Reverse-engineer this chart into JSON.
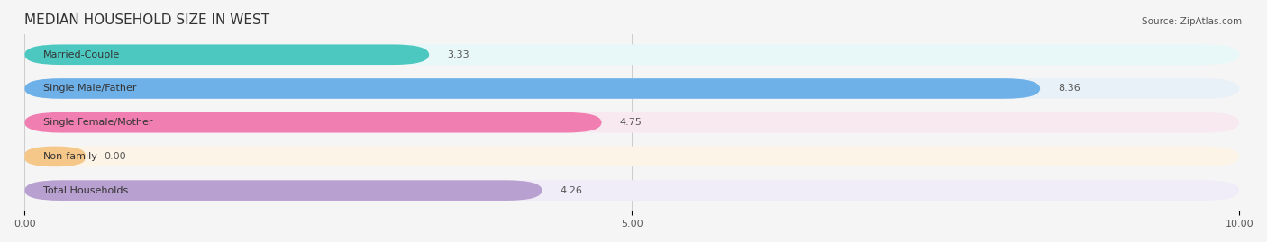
{
  "title": "MEDIAN HOUSEHOLD SIZE IN WEST",
  "source": "Source: ZipAtlas.com",
  "categories": [
    "Married-Couple",
    "Single Male/Father",
    "Single Female/Mother",
    "Non-family",
    "Total Households"
  ],
  "values": [
    3.33,
    8.36,
    4.75,
    0.0,
    4.26
  ],
  "bar_colors": [
    "#4DC8C0",
    "#6EB0E8",
    "#F07EB0",
    "#F5C88A",
    "#B8A0D0"
  ],
  "bg_colors": [
    "#E8F8F8",
    "#E8F0F8",
    "#F8E8F0",
    "#FDF4E8",
    "#F0ECF8"
  ],
  "xlim": [
    0,
    10
  ],
  "xticks": [
    0.0,
    5.0,
    10.0
  ],
  "title_fontsize": 11,
  "label_fontsize": 8,
  "value_fontsize": 8,
  "background_color": "#f5f5f5"
}
